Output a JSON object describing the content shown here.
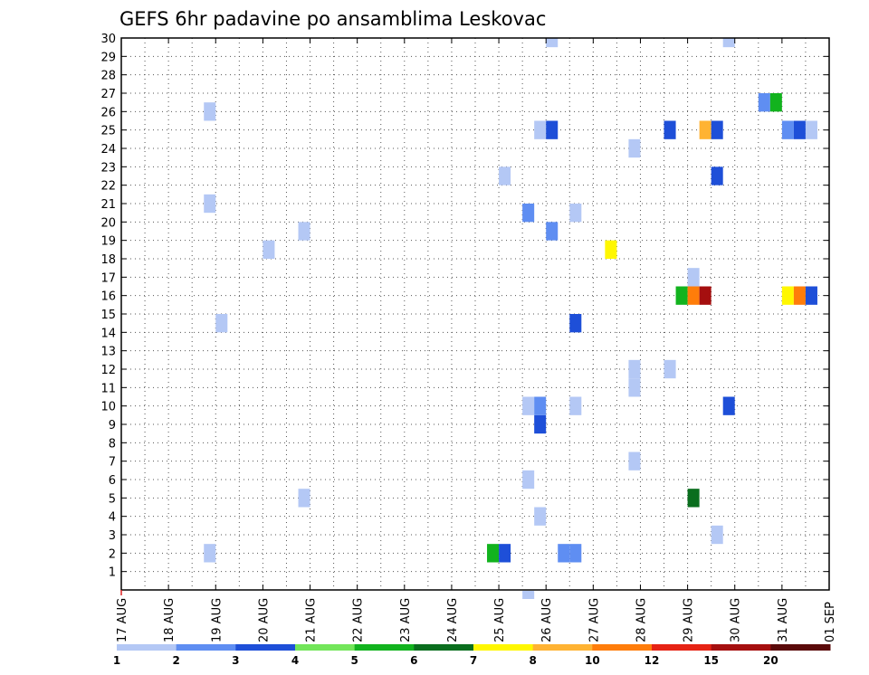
{
  "chart_data": {
    "type": "heatmap",
    "title": "GEFS 6hr padavine po ansamblima Leskovac",
    "xlabel": "",
    "ylabel": "",
    "x_tick_labels": [
      "17 AUG",
      "18 AUG",
      "19 AUG",
      "20 AUG",
      "21 AUG",
      "22 AUG",
      "23 AUG",
      "24 AUG",
      "25 AUG",
      "26 AUG",
      "27 AUG",
      "28 AUG",
      "29 AUG",
      "30 AUG",
      "31 AUG",
      "01 SEP"
    ],
    "y_tick_labels": [
      "1",
      "2",
      "3",
      "4",
      "5",
      "6",
      "7",
      "8",
      "9",
      "10",
      "11",
      "12",
      "13",
      "14",
      "15",
      "16",
      "17",
      "18",
      "19",
      "20",
      "21",
      "22",
      "23",
      "24",
      "25",
      "26",
      "27",
      "28",
      "29",
      "30"
    ],
    "x_range_days": [
      0,
      15
    ],
    "y_range": [
      0,
      30
    ],
    "grid": true,
    "grid_style": "dotted",
    "colorbar": {
      "placement": "bottom",
      "levels": [
        "1",
        "2",
        "3",
        "4",
        "5",
        "6",
        "7",
        "8",
        "10",
        "12",
        "15",
        "20"
      ],
      "colors": [
        "#b4c8f5",
        "#5f8ef2",
        "#1e4fd8",
        "#73e65a",
        "#12b31e",
        "#0a6e1e",
        "#fff700",
        "#ffb333",
        "#ff7d0a",
        "#e62314",
        "#a50f0f",
        "#5a0a0a"
      ]
    },
    "cells": [
      {
        "t": 1.875,
        "m": 2,
        "c": 0
      },
      {
        "t": 1.875,
        "m": 21,
        "c": 0
      },
      {
        "t": 1.875,
        "m": 26,
        "c": 0
      },
      {
        "t": 2.125,
        "m": 14.5,
        "c": 0
      },
      {
        "t": 3.125,
        "m": 18.5,
        "c": 0
      },
      {
        "t": 3.875,
        "m": 5,
        "c": 0
      },
      {
        "t": 3.875,
        "m": 19.5,
        "c": 0
      },
      {
        "t": 7.875,
        "m": 2,
        "c": 4
      },
      {
        "t": 8.125,
        "m": 2,
        "c": 2
      },
      {
        "t": 8.125,
        "m": 22.5,
        "c": 0
      },
      {
        "t": 8.625,
        "m": 6,
        "c": 0
      },
      {
        "t": 8.625,
        "m": 10,
        "c": 0
      },
      {
        "t": 8.625,
        "m": 20.5,
        "c": 1
      },
      {
        "t": 8.625,
        "m": -1,
        "c": 0
      },
      {
        "t": 8.875,
        "m": 4,
        "c": 0
      },
      {
        "t": 8.875,
        "m": 9,
        "c": 2
      },
      {
        "t": 8.875,
        "m": 10,
        "c": 1
      },
      {
        "t": 8.875,
        "m": 25,
        "c": 0
      },
      {
        "t": 9.125,
        "m": 19.5,
        "c": 1
      },
      {
        "t": 9.125,
        "m": 25,
        "c": 2
      },
      {
        "t": 9.125,
        "m": 30,
        "c": 0
      },
      {
        "t": 9.375,
        "m": 2,
        "c": 1
      },
      {
        "t": 9.625,
        "m": 2,
        "c": 1
      },
      {
        "t": 9.625,
        "m": 10,
        "c": 0
      },
      {
        "t": 9.625,
        "m": 14.5,
        "c": 2
      },
      {
        "t": 9.625,
        "m": 20.5,
        "c": 0
      },
      {
        "t": 10.375,
        "m": 18.5,
        "c": 6
      },
      {
        "t": 10.875,
        "m": 7,
        "c": 0
      },
      {
        "t": 10.875,
        "m": 11,
        "c": 0
      },
      {
        "t": 10.875,
        "m": 12,
        "c": 0
      },
      {
        "t": 10.875,
        "m": 24,
        "c": 0
      },
      {
        "t": 11.625,
        "m": 12,
        "c": 0
      },
      {
        "t": 11.625,
        "m": 25,
        "c": 2
      },
      {
        "t": 11.875,
        "m": 16,
        "c": 4
      },
      {
        "t": 12.125,
        "m": 5,
        "c": 5
      },
      {
        "t": 12.125,
        "m": 16,
        "c": 8
      },
      {
        "t": 12.125,
        "m": 17,
        "c": 0
      },
      {
        "t": 12.375,
        "m": 16,
        "c": 10
      },
      {
        "t": 12.375,
        "m": 25,
        "c": 7
      },
      {
        "t": 12.625,
        "m": 3,
        "c": 0
      },
      {
        "t": 12.625,
        "m": 22.5,
        "c": 2
      },
      {
        "t": 12.625,
        "m": 25,
        "c": 2
      },
      {
        "t": 12.875,
        "m": 10,
        "c": 2
      },
      {
        "t": 12.875,
        "m": 30,
        "c": 0
      },
      {
        "t": 13.625,
        "m": 26.5,
        "c": 1
      },
      {
        "t": 13.875,
        "m": 26.5,
        "c": 4
      },
      {
        "t": 14.125,
        "m": 16,
        "c": 6
      },
      {
        "t": 14.125,
        "m": 25,
        "c": 1
      },
      {
        "t": 14.375,
        "m": 16,
        "c": 8
      },
      {
        "t": 14.375,
        "m": 25,
        "c": 2
      },
      {
        "t": 14.625,
        "m": 16,
        "c": 2
      },
      {
        "t": 14.625,
        "m": 25,
        "c": 0
      }
    ]
  }
}
